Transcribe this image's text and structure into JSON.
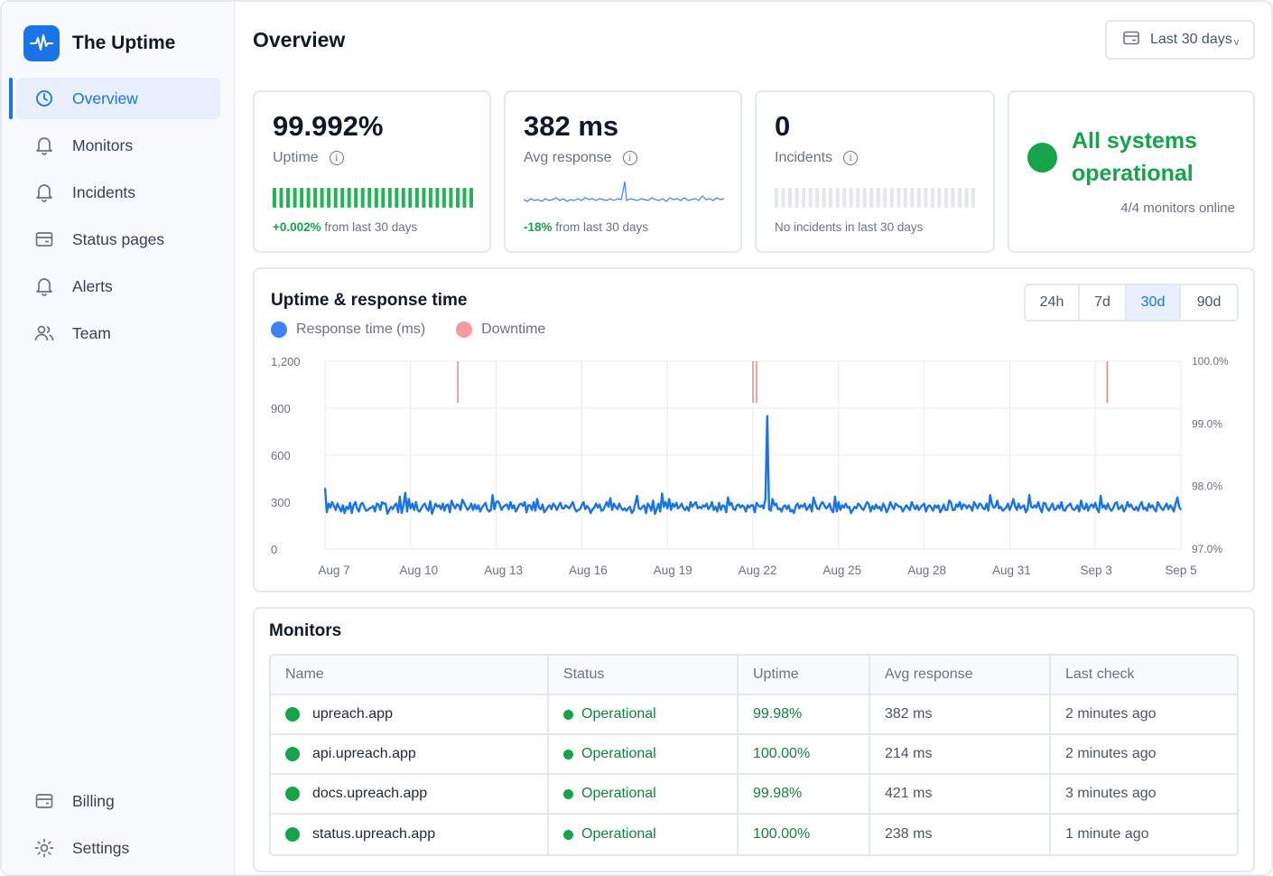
{
  "app": {
    "name": "The Uptime",
    "logo_icon": "pulse-icon",
    "accent": "#1a73e8"
  },
  "sidebar": {
    "items": [
      {
        "label": "Overview",
        "icon": "clock-icon",
        "active": true
      },
      {
        "label": "Monitors",
        "icon": "bell-icon"
      },
      {
        "label": "Incidents",
        "icon": "bell-icon"
      },
      {
        "label": "Status pages",
        "icon": "card-icon"
      },
      {
        "label": "Alerts",
        "icon": "bell-icon"
      },
      {
        "label": "Team",
        "icon": "users-icon"
      }
    ],
    "bottom": [
      {
        "label": "Billing",
        "icon": "wallet-icon"
      },
      {
        "label": "Settings",
        "icon": "gear-icon"
      }
    ]
  },
  "header": {
    "title": "Overview",
    "range_label": "Last 30 days",
    "range_chevron": "v"
  },
  "stats": {
    "uptime": {
      "value": "99.992%",
      "label": "Uptime",
      "delta": "+0.002%",
      "foot": " from last 30 days"
    },
    "response": {
      "value": "382 ms",
      "label": "Avg response",
      "delta": "-18%",
      "foot": " from last 30 days"
    },
    "incidents": {
      "value": "0",
      "label": "Incidents",
      "foot": "No incidents in last 30 days"
    },
    "status": {
      "title": "All systems operational",
      "sub": "4/4 monitors online"
    }
  },
  "chart": {
    "title": "Uptime & response time",
    "legend": [
      {
        "label": "Response time (ms)",
        "color": "#3b82f6"
      },
      {
        "label": "Downtime",
        "color": "#f49b9b"
      }
    ],
    "ranges": [
      "24h",
      "7d",
      "30d",
      "90d"
    ],
    "active_range": "30d"
  },
  "chart_data": {
    "type": "line",
    "x_ticks": [
      "Aug 7",
      "Aug 10",
      "Aug 13",
      "Aug 16",
      "Aug 19",
      "Aug 22",
      "Aug 25",
      "Aug 28",
      "Aug 31",
      "Sep 3",
      "Sep 5"
    ],
    "y_ticks": [
      "1,200",
      "900",
      "600",
      "300",
      "0"
    ],
    "y2_ticks": [
      "100.0%",
      "99.0%",
      "98.0%",
      "97.0%"
    ],
    "ylim": [
      0,
      1200
    ],
    "y2lim": [
      97.0,
      100.0
    ],
    "grid": true,
    "series": [
      {
        "name": "Response time (ms)",
        "values": [
          390,
          235,
          290,
          265,
          300,
          275,
          250,
          290,
          265,
          240,
          280,
          230,
          270,
          255,
          295,
          230,
          280,
          300,
          260,
          240,
          285,
          295,
          270,
          245,
          250,
          260,
          265,
          275,
          240,
          290,
          285,
          250,
          300,
          290,
          290,
          225,
          250,
          270,
          255,
          280,
          290,
          235,
          335,
          230,
          280,
          360,
          240,
          320,
          260,
          290,
          250,
          300,
          250,
          240,
          260,
          280,
          290,
          260,
          245,
          305,
          225,
          260,
          290,
          270,
          280,
          255,
          290,
          245,
          280,
          285,
          235,
          310,
          280,
          260,
          285,
          280,
          250,
          315,
          295,
          270,
          250,
          265,
          290,
          250,
          285,
          255,
          280,
          240,
          265,
          280,
          295,
          255,
          240,
          250,
          345,
          255,
          300,
          305,
          285,
          250,
          270,
          280,
          285,
          255,
          300,
          260,
          280,
          240,
          260,
          285,
          290,
          275,
          300,
          235,
          280,
          280,
          250,
          300,
          245,
          320,
          265,
          255,
          285,
          235,
          250,
          270,
          280,
          255,
          290,
          275,
          250,
          275,
          295,
          260,
          260,
          280,
          270,
          260,
          280,
          300,
          260,
          240,
          250,
          255,
          280,
          300,
          255,
          275,
          260,
          230,
          255,
          265,
          290,
          265,
          285,
          245,
          250,
          275,
          300,
          270,
          325,
          250,
          290,
          270,
          255,
          290,
          265,
          250,
          260,
          245,
          260,
          270,
          230,
          245,
          290,
          340,
          260,
          255,
          270,
          280,
          230,
          290,
          275,
          245,
          310,
          225,
          255,
          290,
          240,
          355,
          270,
          300,
          260,
          320,
          250,
          290,
          270,
          295,
          260,
          270,
          290,
          260,
          250,
          270,
          245,
          300,
          270,
          285,
          300,
          260,
          270,
          260,
          280,
          270,
          290,
          255,
          270,
          300,
          250,
          270,
          240,
          295,
          250,
          280,
          275,
          235,
          330,
          280,
          295,
          255,
          250,
          280,
          285,
          265,
          280,
          270,
          240,
          280,
          265,
          280,
          280,
          235,
          295,
          280,
          270,
          280,
          260,
          250,
          275,
          255,
          245,
          320,
          280,
          290,
          255,
          260,
          240,
          270,
          280,
          255,
          280,
          240,
          250,
          230,
          275,
          290,
          260,
          280,
          270,
          290,
          250,
          265,
          285,
          240,
          330,
          290,
          260,
          255,
          285,
          300,
          280,
          260,
          270,
          290,
          250,
          235,
          335,
          240,
          300,
          250,
          280,
          265,
          290,
          265,
          270,
          230,
          250,
          270,
          260,
          290,
          280,
          260,
          250,
          275,
          300,
          285,
          240,
          275,
          255,
          285,
          260,
          270,
          245,
          290,
          270,
          235,
          260,
          300,
          275,
          255,
          290,
          280,
          270,
          270,
          240,
          260,
          280,
          265,
          250,
          300,
          275,
          255,
          280,
          250,
          265,
          280,
          290,
          240,
          270,
          280,
          265,
          245,
          280,
          265,
          280,
          235,
          255,
          285,
          250,
          250,
          310,
          300,
          250,
          250,
          285,
          270,
          300,
          255,
          285,
          280,
          260,
          280,
          270,
          245,
          300,
          280,
          260,
          290,
          285,
          260,
          255,
          290,
          245,
          345,
          290,
          265,
          270,
          310,
          260,
          270,
          245,
          255,
          265,
          290,
          250,
          280,
          320,
          275,
          250,
          290,
          260,
          270,
          280,
          235,
          255,
          345,
          270,
          265,
          280,
          265,
          300,
          260,
          235,
          295,
          290,
          260,
          245,
          270,
          290,
          250,
          255,
          280,
          260,
          300,
          250,
          245,
          270,
          280,
          290,
          260,
          250,
          260,
          280,
          240,
          310,
          265,
          255,
          290,
          245,
          275,
          285,
          265,
          295,
          255,
          235,
          340,
          265,
          280,
          255,
          290,
          260,
          245,
          260,
          290,
          300,
          255,
          265,
          280,
          240,
          260,
          300,
          270,
          285,
          260,
          250,
          270,
          245,
          280,
          300,
          255,
          265,
          245,
          290,
          265,
          280,
          255,
          240,
          300,
          280,
          260,
          250,
          270,
          290,
          255,
          280,
          265,
          240,
          290,
          330,
          270,
          250
        ]
      }
    ],
    "spike": {
      "x": "Aug 22",
      "value": 850
    },
    "downtime_events": [
      "Aug 11",
      "Aug 21",
      "Aug 21",
      "Sep 2"
    ]
  },
  "monitors": {
    "title": "Monitors",
    "columns": [
      "Name",
      "Status",
      "Uptime",
      "Avg response",
      "Last check"
    ],
    "rows": [
      {
        "name": "upreach.app",
        "status": "Operational",
        "uptime": "99.98%",
        "avg": "382 ms",
        "last": "2 minutes ago"
      },
      {
        "name": "api.upreach.app",
        "status": "Operational",
        "uptime": "100.00%",
        "avg": "214 ms",
        "last": "2 minutes ago"
      },
      {
        "name": "docs.upreach.app",
        "status": "Operational",
        "uptime": "99.98%",
        "avg": "421 ms",
        "last": "3 minutes ago"
      },
      {
        "name": "status.upreach.app",
        "status": "Operational",
        "uptime": "100.00%",
        "avg": "238 ms",
        "last": "1 minute ago"
      }
    ]
  }
}
